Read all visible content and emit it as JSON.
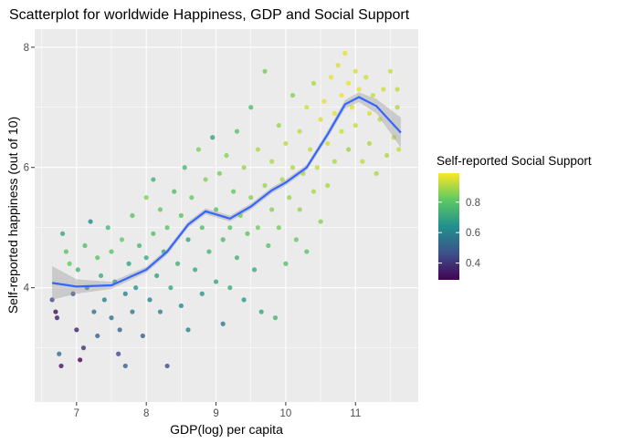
{
  "chart_data": {
    "type": "scatter",
    "title": "Scatterplot for worldwide Happiness, GDP and Social Support",
    "xlabel": "GDP(log) per capita",
    "ylabel": "Self-reported happiness (out of 10)",
    "xlim": [
      6.4,
      11.9
    ],
    "ylim": [
      2.1,
      8.3
    ],
    "xticks": [
      7,
      8,
      9,
      10,
      11
    ],
    "yticks": [
      4,
      6,
      8
    ],
    "grid": true,
    "legend": {
      "title": "Self-reported Social Support",
      "placement": "right",
      "ticks": [
        0.4,
        0.6,
        0.8
      ],
      "range": [
        0.29,
        0.99
      ],
      "colormap": "viridis"
    },
    "smooth": {
      "color": "#3366FF",
      "band_color": "#999999",
      "points": [
        [
          6.65,
          4.08
        ],
        [
          7.0,
          4.02
        ],
        [
          7.5,
          4.04
        ],
        [
          8.0,
          4.3
        ],
        [
          8.3,
          4.6
        ],
        [
          8.6,
          5.05
        ],
        [
          8.85,
          5.27
        ],
        [
          9.0,
          5.22
        ],
        [
          9.2,
          5.15
        ],
        [
          9.5,
          5.35
        ],
        [
          9.8,
          5.62
        ],
        [
          10.0,
          5.75
        ],
        [
          10.3,
          6.0
        ],
        [
          10.6,
          6.55
        ],
        [
          10.85,
          7.05
        ],
        [
          11.05,
          7.17
        ],
        [
          11.3,
          7.02
        ],
        [
          11.65,
          6.58
        ]
      ],
      "band": [
        0.28,
        0.12,
        0.06,
        0.05,
        0.05,
        0.05,
        0.05,
        0.05,
        0.05,
        0.05,
        0.05,
        0.05,
        0.05,
        0.06,
        0.07,
        0.08,
        0.12,
        0.25
      ]
    },
    "points": [
      [
        6.65,
        3.8,
        0.45
      ],
      [
        6.7,
        3.6,
        0.32
      ],
      [
        6.72,
        3.5,
        0.35
      ],
      [
        6.75,
        2.9,
        0.55
      ],
      [
        6.78,
        2.7,
        0.33
      ],
      [
        6.8,
        4.9,
        0.7
      ],
      [
        6.85,
        4.6,
        0.8
      ],
      [
        6.9,
        4.4,
        0.82
      ],
      [
        6.95,
        3.9,
        0.45
      ],
      [
        7.0,
        3.3,
        0.35
      ],
      [
        7.02,
        4.3,
        0.75
      ],
      [
        7.05,
        2.8,
        0.3
      ],
      [
        7.1,
        3.0,
        0.4
      ],
      [
        7.12,
        4.7,
        0.78
      ],
      [
        7.15,
        4.0,
        0.6
      ],
      [
        7.2,
        5.1,
        0.62
      ],
      [
        7.25,
        3.6,
        0.55
      ],
      [
        7.3,
        4.5,
        0.8
      ],
      [
        7.3,
        3.2,
        0.5
      ],
      [
        7.35,
        4.2,
        0.72
      ],
      [
        7.4,
        3.8,
        0.6
      ],
      [
        7.45,
        5.0,
        0.75
      ],
      [
        7.5,
        4.6,
        0.8
      ],
      [
        7.5,
        3.5,
        0.55
      ],
      [
        7.55,
        4.1,
        0.68
      ],
      [
        7.6,
        2.9,
        0.45
      ],
      [
        7.62,
        3.3,
        0.52
      ],
      [
        7.65,
        4.8,
        0.82
      ],
      [
        7.7,
        3.9,
        0.6
      ],
      [
        7.7,
        2.7,
        0.5
      ],
      [
        7.75,
        4.4,
        0.7
      ],
      [
        7.8,
        3.6,
        0.58
      ],
      [
        7.8,
        5.2,
        0.8
      ],
      [
        7.85,
        4.0,
        0.65
      ],
      [
        7.9,
        4.7,
        0.76
      ],
      [
        7.95,
        3.2,
        0.5
      ],
      [
        8.0,
        4.5,
        0.72
      ],
      [
        8.0,
        5.5,
        0.85
      ],
      [
        8.05,
        3.8,
        0.6
      ],
      [
        8.1,
        4.9,
        0.78
      ],
      [
        8.1,
        5.8,
        0.74
      ],
      [
        8.15,
        4.2,
        0.68
      ],
      [
        8.2,
        3.6,
        0.6
      ],
      [
        8.2,
        5.3,
        0.82
      ],
      [
        8.25,
        4.6,
        0.72
      ],
      [
        8.3,
        2.7,
        0.45
      ],
      [
        8.3,
        5.0,
        0.8
      ],
      [
        8.35,
        4.0,
        0.7
      ],
      [
        8.4,
        5.6,
        0.78
      ],
      [
        8.45,
        4.4,
        0.74
      ],
      [
        8.5,
        3.7,
        0.62
      ],
      [
        8.5,
        5.2,
        0.8
      ],
      [
        8.55,
        6.0,
        0.76
      ],
      [
        8.6,
        4.8,
        0.7
      ],
      [
        8.6,
        3.3,
        0.6
      ],
      [
        8.65,
        5.5,
        0.82
      ],
      [
        8.7,
        4.3,
        0.72
      ],
      [
        8.75,
        6.3,
        0.85
      ],
      [
        8.8,
        5.0,
        0.78
      ],
      [
        8.8,
        3.9,
        0.66
      ],
      [
        8.85,
        5.8,
        0.86
      ],
      [
        8.9,
        4.6,
        0.75
      ],
      [
        8.95,
        6.5,
        0.7
      ],
      [
        9.0,
        5.3,
        0.8
      ],
      [
        9.0,
        4.1,
        0.7
      ],
      [
        9.05,
        5.9,
        0.84
      ],
      [
        9.1,
        4.8,
        0.76
      ],
      [
        9.1,
        3.4,
        0.58
      ],
      [
        9.15,
        6.2,
        0.86
      ],
      [
        9.2,
        5.0,
        0.8
      ],
      [
        9.2,
        4.0,
        0.72
      ],
      [
        9.25,
        5.6,
        0.82
      ],
      [
        9.3,
        4.5,
        0.74
      ],
      [
        9.3,
        6.6,
        0.8
      ],
      [
        9.35,
        5.2,
        0.84
      ],
      [
        9.4,
        3.8,
        0.66
      ],
      [
        9.4,
        6.0,
        0.88
      ],
      [
        9.45,
        4.9,
        0.8
      ],
      [
        9.5,
        5.5,
        0.86
      ],
      [
        9.5,
        7.0,
        0.78
      ],
      [
        9.55,
        4.3,
        0.72
      ],
      [
        9.6,
        6.3,
        0.9
      ],
      [
        9.6,
        5.0,
        0.84
      ],
      [
        9.65,
        3.6,
        0.7
      ],
      [
        9.7,
        5.7,
        0.88
      ],
      [
        9.7,
        7.6,
        0.84
      ],
      [
        9.75,
        4.7,
        0.8
      ],
      [
        9.8,
        6.1,
        0.9
      ],
      [
        9.8,
        5.3,
        0.86
      ],
      [
        9.85,
        3.5,
        0.75
      ],
      [
        9.9,
        6.7,
        0.88
      ],
      [
        9.9,
        5.0,
        0.84
      ],
      [
        9.95,
        5.8,
        0.9
      ],
      [
        10.0,
        4.4,
        0.78
      ],
      [
        10.0,
        6.4,
        0.92
      ],
      [
        10.05,
        5.5,
        0.88
      ],
      [
        10.1,
        7.2,
        0.86
      ],
      [
        10.1,
        6.0,
        0.9
      ],
      [
        10.15,
        4.8,
        0.82
      ],
      [
        10.2,
        5.3,
        0.88
      ],
      [
        10.2,
        6.6,
        0.92
      ],
      [
        10.25,
        5.9,
        0.9
      ],
      [
        10.3,
        7.0,
        0.94
      ],
      [
        10.3,
        4.6,
        0.8
      ],
      [
        10.35,
        6.3,
        0.92
      ],
      [
        10.4,
        5.6,
        0.9
      ],
      [
        10.4,
        7.4,
        0.9
      ],
      [
        10.45,
        6.0,
        0.92
      ],
      [
        10.5,
        6.8,
        0.95
      ],
      [
        10.5,
        5.1,
        0.86
      ],
      [
        10.55,
        7.1,
        0.96
      ],
      [
        10.6,
        6.4,
        0.94
      ],
      [
        10.6,
        5.7,
        0.9
      ],
      [
        10.65,
        7.5,
        0.97
      ],
      [
        10.7,
        6.9,
        0.96
      ],
      [
        10.7,
        6.1,
        0.9
      ],
      [
        10.75,
        7.7,
        0.95
      ],
      [
        10.8,
        7.2,
        0.97
      ],
      [
        10.8,
        6.6,
        0.94
      ],
      [
        10.85,
        7.9,
        0.96
      ],
      [
        10.9,
        7.4,
        0.97
      ],
      [
        10.9,
        6.3,
        0.88
      ],
      [
        10.95,
        7.0,
        0.96
      ],
      [
        11.0,
        7.6,
        0.95
      ],
      [
        11.0,
        6.7,
        0.93
      ],
      [
        11.05,
        7.3,
        0.96
      ],
      [
        11.1,
        6.1,
        0.92
      ],
      [
        11.15,
        7.5,
        0.94
      ],
      [
        11.2,
        6.9,
        0.95
      ],
      [
        11.2,
        6.4,
        0.9
      ],
      [
        11.25,
        7.2,
        0.93
      ],
      [
        11.3,
        5.9,
        0.9
      ],
      [
        11.35,
        6.8,
        0.92
      ],
      [
        11.4,
        7.3,
        0.94
      ],
      [
        11.45,
        6.2,
        0.9
      ],
      [
        11.5,
        7.6,
        0.93
      ],
      [
        11.55,
        6.5,
        0.92
      ],
      [
        11.6,
        7.0,
        0.9
      ],
      [
        11.62,
        6.3,
        0.93
      ],
      [
        11.6,
        7.3,
        0.92
      ]
    ]
  }
}
